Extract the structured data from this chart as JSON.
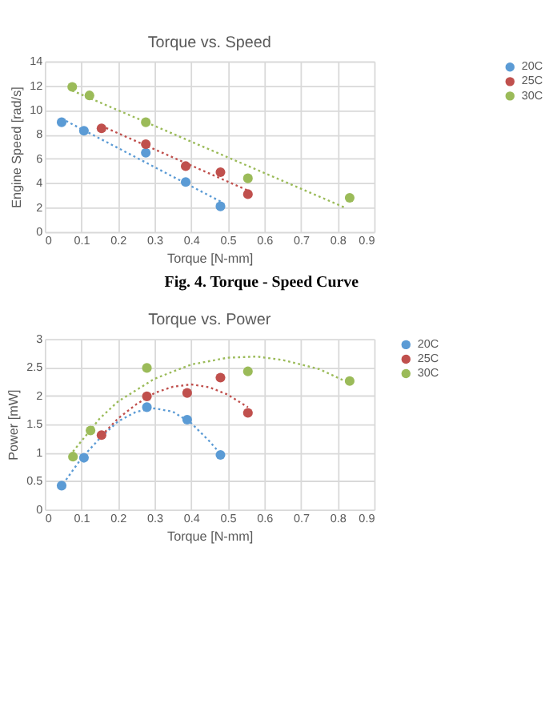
{
  "chart_data": [
    {
      "type": "scatter",
      "title": "Torque vs. Speed",
      "xlabel": "Torque [N-mm]",
      "ylabel": "Engine Speed [rad/s]",
      "xlim": [
        0,
        0.9
      ],
      "xticks": [
        0,
        0.1,
        0.2,
        0.3,
        0.4,
        0.5,
        0.6,
        0.7,
        0.8,
        0.9
      ],
      "ylim": [
        0,
        14
      ],
      "yticks": [
        0,
        2,
        4,
        6,
        8,
        10,
        12,
        14
      ],
      "grid": true,
      "legend": "right",
      "marker": "circle",
      "annotations": [
        "Fig. 4. Torque - Speed Curve"
      ],
      "series": [
        {
          "name": "20C",
          "color": "#5b9bd5",
          "x": [
            0.046,
            0.107,
            0.276,
            0.385,
            0.48
          ],
          "values": [
            9.0,
            8.3,
            6.5,
            4.1,
            2.1
          ]
        },
        {
          "name": "25C",
          "color": "#c0504d",
          "x": [
            0.155,
            0.276,
            0.385,
            0.48,
            0.555
          ],
          "values": [
            8.5,
            7.2,
            5.4,
            4.9,
            3.1
          ]
        },
        {
          "name": "30C",
          "color": "#9bbb59",
          "x": [
            0.075,
            0.122,
            0.276,
            0.555,
            0.833
          ],
          "values": [
            11.9,
            11.2,
            9.0,
            4.4,
            2.8
          ]
        },
        {
          "type": "line",
          "color": "#5b9bd5",
          "line_style": "dotted",
          "marker": "none",
          "x": [
            0.046,
            0.48
          ],
          "values": [
            9.3,
            2.5
          ]
        },
        {
          "type": "line",
          "color": "#c0504d",
          "line_style": "dotted",
          "marker": "none",
          "x": [
            0.155,
            0.555
          ],
          "values": [
            8.7,
            3.4
          ]
        },
        {
          "type": "line",
          "color": "#9bbb59",
          "line_style": "dotted",
          "marker": "none",
          "x": [
            0.075,
            0.82
          ],
          "values": [
            11.6,
            2.0
          ]
        }
      ]
    },
    {
      "type": "scatter",
      "title": "Torque vs. Power",
      "xlabel": "Torque [N-mm]",
      "ylabel": "Power [mW]",
      "xlim": [
        0,
        0.9
      ],
      "xticks": [
        0,
        0.1,
        0.2,
        0.3,
        0.4,
        0.5,
        0.6,
        0.7,
        0.8,
        0.9
      ],
      "ylim": [
        0,
        3
      ],
      "yticks": [
        0,
        0.5,
        1,
        1.5,
        2,
        2.5,
        3
      ],
      "grid": true,
      "legend": "right",
      "marker": "circle",
      "series": [
        {
          "name": "20C",
          "color": "#5b9bd5",
          "x": [
            0.046,
            0.107,
            0.279,
            0.389,
            0.48
          ],
          "values": [
            0.42,
            0.91,
            1.8,
            1.58,
            0.96
          ]
        },
        {
          "name": "25C",
          "color": "#c0504d",
          "x": [
            0.155,
            0.279,
            0.389,
            0.48,
            0.555
          ],
          "values": [
            1.31,
            1.99,
            2.05,
            2.32,
            1.7
          ]
        },
        {
          "name": "30C",
          "color": "#9bbb59",
          "x": [
            0.077,
            0.125,
            0.279,
            0.555,
            0.833
          ],
          "values": [
            0.93,
            1.39,
            2.49,
            2.43,
            2.26
          ]
        },
        {
          "type": "line",
          "color": "#5b9bd5",
          "line_style": "dotted",
          "marker": "none",
          "x": [
            0.05,
            0.1,
            0.15,
            0.2,
            0.25,
            0.3,
            0.35,
            0.4,
            0.45,
            0.48
          ],
          "values": [
            0.45,
            0.9,
            1.25,
            1.55,
            1.72,
            1.78,
            1.72,
            1.52,
            1.2,
            0.98
          ]
        },
        {
          "type": "line",
          "color": "#c0504d",
          "line_style": "dotted",
          "marker": "none",
          "x": [
            0.155,
            0.2,
            0.25,
            0.3,
            0.35,
            0.4,
            0.45,
            0.5,
            0.555
          ],
          "values": [
            1.3,
            1.6,
            1.85,
            2.05,
            2.16,
            2.2,
            2.15,
            2.02,
            1.8
          ]
        },
        {
          "type": "line",
          "color": "#9bbb59",
          "line_style": "dotted",
          "marker": "none",
          "x": [
            0.077,
            0.15,
            0.2,
            0.3,
            0.4,
            0.5,
            0.58,
            0.65,
            0.75,
            0.833
          ],
          "values": [
            1.02,
            1.6,
            1.9,
            2.3,
            2.55,
            2.67,
            2.69,
            2.63,
            2.47,
            2.22
          ]
        }
      ]
    }
  ]
}
